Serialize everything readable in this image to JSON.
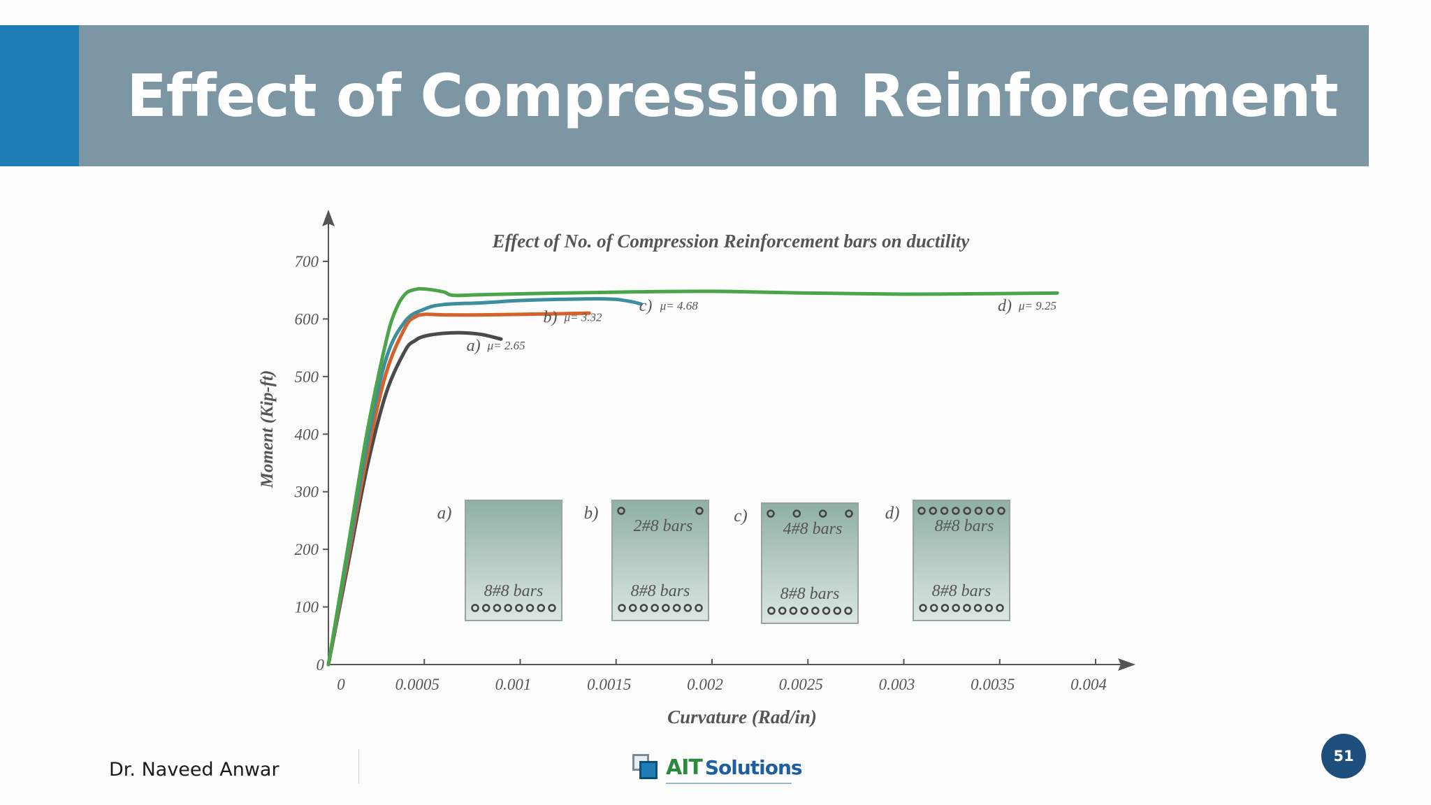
{
  "slide": {
    "title": "Effect of Compression Reinforcement",
    "author": "Dr. Naveed Anwar",
    "page_number": "51",
    "logo": {
      "part1": "AIT",
      "part2": "Solutions"
    },
    "accent_color": "#1f7cb4",
    "title_bar_color": "#7c96a4"
  },
  "chart_data": {
    "type": "line",
    "title": "Effect of No. of Compression Reinforcement bars on ductility",
    "xlabel": "Curvature (Rad/in)",
    "ylabel": "Moment (Kip-ft)",
    "xlim": [
      0,
      0.0042
    ],
    "ylim": [
      0,
      750
    ],
    "x_ticks": [
      0,
      0.0005,
      0.001,
      0.0015,
      0.002,
      0.0025,
      0.003,
      0.0035,
      0.004
    ],
    "x_tick_labels": [
      "0",
      "0.0005",
      "0.001",
      "0.0015",
      "0.002",
      "0.0025",
      "0.003",
      "0.0035",
      "0.004"
    ],
    "y_ticks": [
      0,
      100,
      200,
      300,
      400,
      500,
      600,
      700
    ],
    "y_tick_labels": [
      "0",
      "100",
      "200",
      "300",
      "400",
      "500",
      "600",
      "700"
    ],
    "grid": false,
    "series": [
      {
        "name": "a)",
        "color": "#4a4a4a",
        "points": [
          [
            0,
            0
          ],
          [
            0.0001,
            170
          ],
          [
            0.0002,
            340
          ],
          [
            0.0003,
            470
          ],
          [
            0.0004,
            545
          ],
          [
            0.00045,
            562
          ],
          [
            0.0005,
            570
          ],
          [
            0.0006,
            575
          ],
          [
            0.0007,
            576
          ],
          [
            0.0008,
            573
          ],
          [
            0.0009,
            565
          ]
        ],
        "label": {
          "letter": "a)",
          "mu": "μ= 2.65",
          "at": [
            0.00072,
            545
          ]
        }
      },
      {
        "name": "b)",
        "color": "#d4622a",
        "points": [
          [
            0,
            0
          ],
          [
            0.0001,
            180
          ],
          [
            0.0002,
            360
          ],
          [
            0.0003,
            505
          ],
          [
            0.0004,
            585
          ],
          [
            0.00045,
            603
          ],
          [
            0.0005,
            608
          ],
          [
            0.0006,
            607
          ],
          [
            0.0008,
            607
          ],
          [
            0.001,
            608
          ],
          [
            0.0012,
            609
          ],
          [
            0.00136,
            610
          ]
        ],
        "label": {
          "letter": "b)",
          "mu": "μ= 3.32",
          "at": [
            0.00112,
            594
          ]
        }
      },
      {
        "name": "c)",
        "color": "#3e8f9e",
        "points": [
          [
            0,
            0
          ],
          [
            0.0001,
            190
          ],
          [
            0.0002,
            380
          ],
          [
            0.0003,
            530
          ],
          [
            0.0004,
            596
          ],
          [
            0.0005,
            617
          ],
          [
            0.0006,
            625
          ],
          [
            0.0008,
            628
          ],
          [
            0.001,
            632
          ],
          [
            0.0012,
            634
          ],
          [
            0.0014,
            635
          ],
          [
            0.0015,
            634
          ],
          [
            0.00158,
            630
          ],
          [
            0.00163,
            626
          ]
        ],
        "label": {
          "letter": "c)",
          "mu": "μ= 4.68",
          "at": [
            0.00162,
            614
          ]
        }
      },
      {
        "name": "d)",
        "color": "#4aa54a",
        "points": [
          [
            0,
            0
          ],
          [
            0.0001,
            200
          ],
          [
            0.0002,
            400
          ],
          [
            0.0003,
            560
          ],
          [
            0.00035,
            615
          ],
          [
            0.0004,
            643
          ],
          [
            0.00045,
            651
          ],
          [
            0.0005,
            652
          ],
          [
            0.0006,
            647
          ],
          [
            0.00065,
            641
          ],
          [
            0.0008,
            642
          ],
          [
            0.0012,
            645
          ],
          [
            0.0016,
            647
          ],
          [
            0.002,
            648
          ],
          [
            0.0025,
            645
          ],
          [
            0.003,
            643
          ],
          [
            0.0035,
            644
          ],
          [
            0.0038,
            645
          ]
        ],
        "label": {
          "letter": "d)",
          "mu": "μ= 9.25",
          "at": [
            0.00349,
            614
          ]
        }
      }
    ],
    "insets": [
      {
        "tag": "a)",
        "top_bars": 0,
        "top_text": "",
        "bottom_text": "8#8 bars",
        "bottom_bars": 8
      },
      {
        "tag": "b)",
        "top_bars": 2,
        "top_text": "2#8 bars",
        "bottom_text": "8#8 bars",
        "bottom_bars": 8
      },
      {
        "tag": "c)",
        "top_bars": 4,
        "top_text": "4#8 bars",
        "bottom_text": "8#8 bars",
        "bottom_bars": 8
      },
      {
        "tag": "d)",
        "top_bars": 8,
        "top_text": "8#8 bars",
        "bottom_text": "8#8 bars",
        "bottom_bars": 8
      }
    ]
  }
}
